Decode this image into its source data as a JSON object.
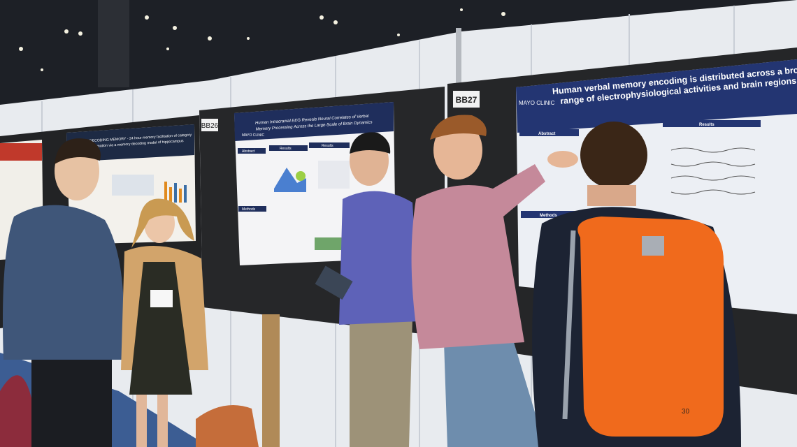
{
  "booth_labels": [
    "BB26",
    "BB27"
  ],
  "posters": [
    {
      "title_lines": [
        "DECODING MEMORY - 24 hour memory facilitation of category",
        "information via a memory decoding model of hippocampus"
      ]
    },
    {
      "logo": "MAYO CLINIC",
      "title_lines": [
        "Human Intracranial EEG Reveals Neural Correlates of Verbal",
        "Memory Processing Across the Large-Scale of Brain Dynamics"
      ],
      "sections": [
        "Abstract",
        "Results",
        "Results",
        "Methods"
      ]
    },
    {
      "logo": "MAYO CLINIC",
      "title_lines": [
        "Human verbal memory encoding is distributed across a broad",
        "range of electrophysiological activities and brain regions"
      ],
      "sections": [
        "Abstract",
        "Results",
        "Methods"
      ]
    }
  ],
  "backpack_number": "30"
}
